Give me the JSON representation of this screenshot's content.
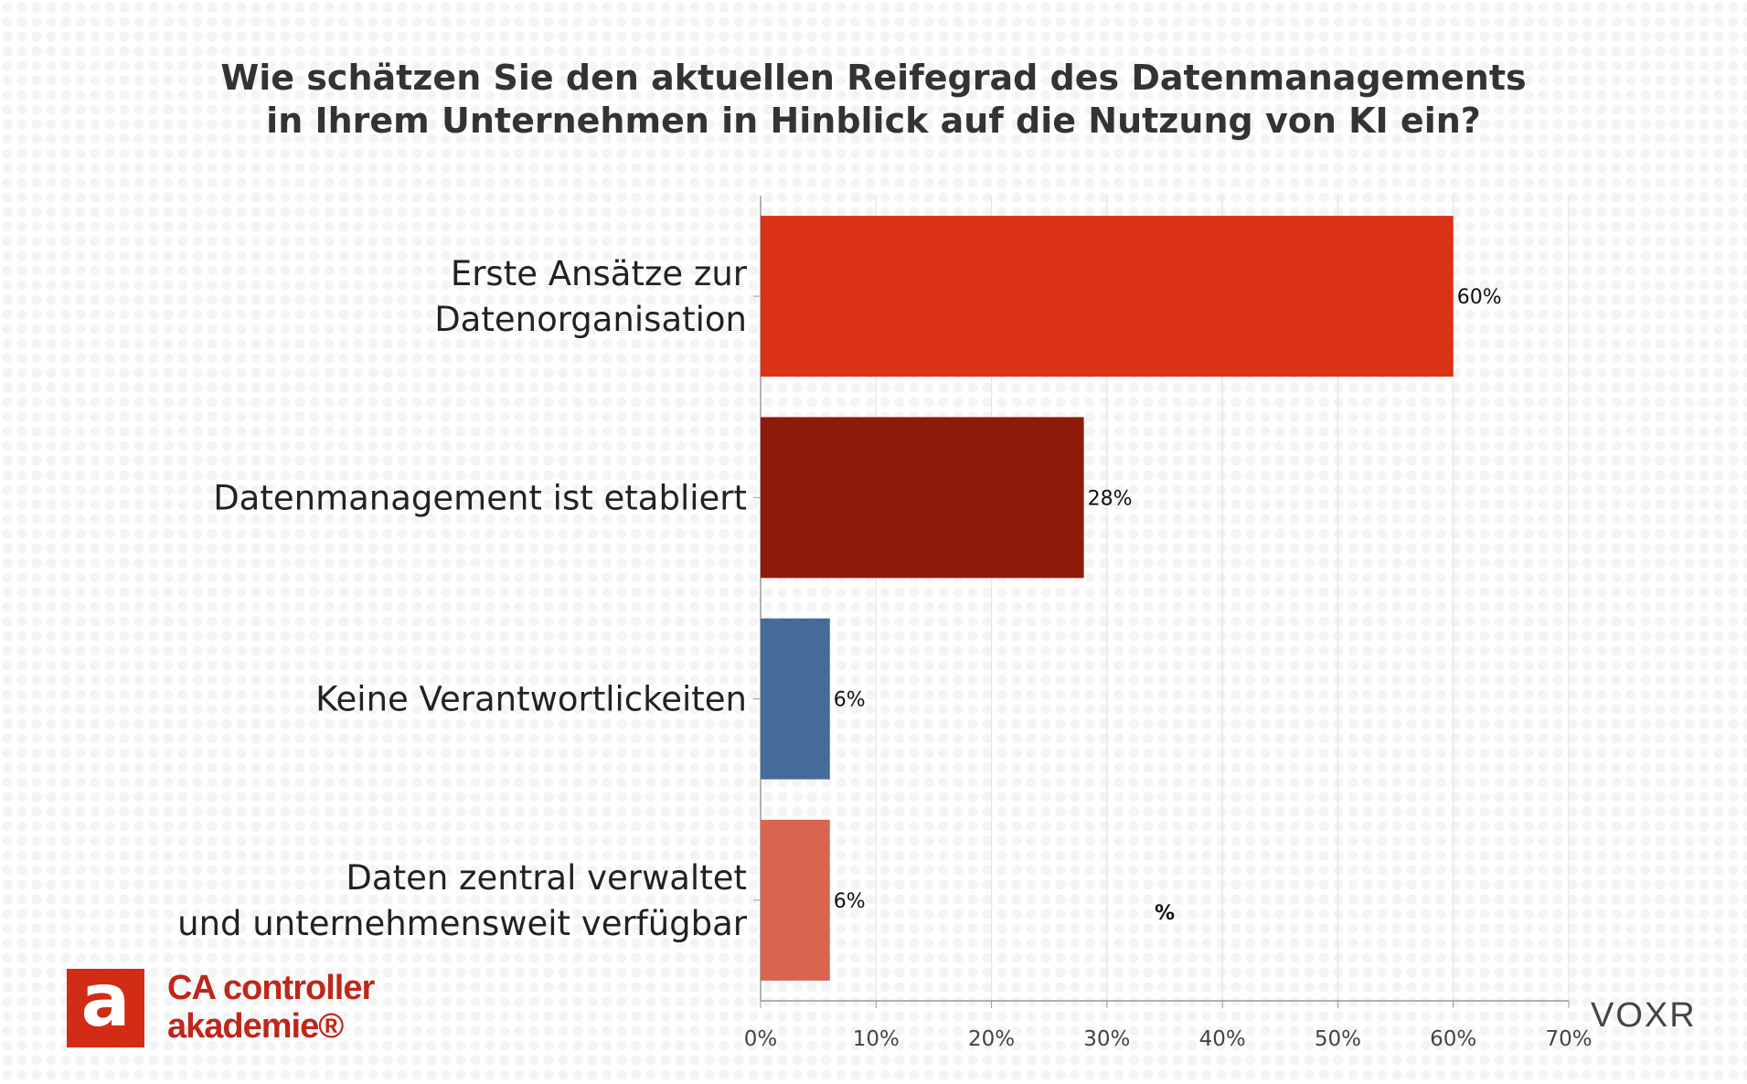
{
  "chart_data": {
    "type": "bar",
    "orientation": "horizontal",
    "title": [
      "Wie schätzen Sie den aktuellen Reifegrad des Datenmanagements",
      "in Ihrem Unternehmen in Hinblick auf die Nutzung von KI ein?"
    ],
    "categories": [
      [
        "Erste Ansätze zur",
        "Datenorganisation"
      ],
      [
        "Datenmanagement ist etabliert"
      ],
      [
        "Keine Verantwortlickeiten"
      ],
      [
        "Daten zentral verwaltet",
        "und unternehmensweit verfügbar"
      ]
    ],
    "values": [
      60,
      28,
      6,
      6
    ],
    "data_labels": [
      "60%",
      "28%",
      "6%",
      "6%"
    ],
    "colors": [
      "#db3215",
      "#8e1c0b",
      "#456b98",
      "#d76550"
    ],
    "xlim": [
      0,
      70
    ],
    "xticks": [
      "0%",
      "10%",
      "20%",
      "30%",
      "40%",
      "50%",
      "60%",
      "70%"
    ],
    "xlabel": "%",
    "ylabel": "",
    "grid": true
  },
  "footer": {
    "logo_lines": [
      "CA controller",
      "akademie®"
    ],
    "logo_mark": "a",
    "brand_right": "VOXR"
  }
}
